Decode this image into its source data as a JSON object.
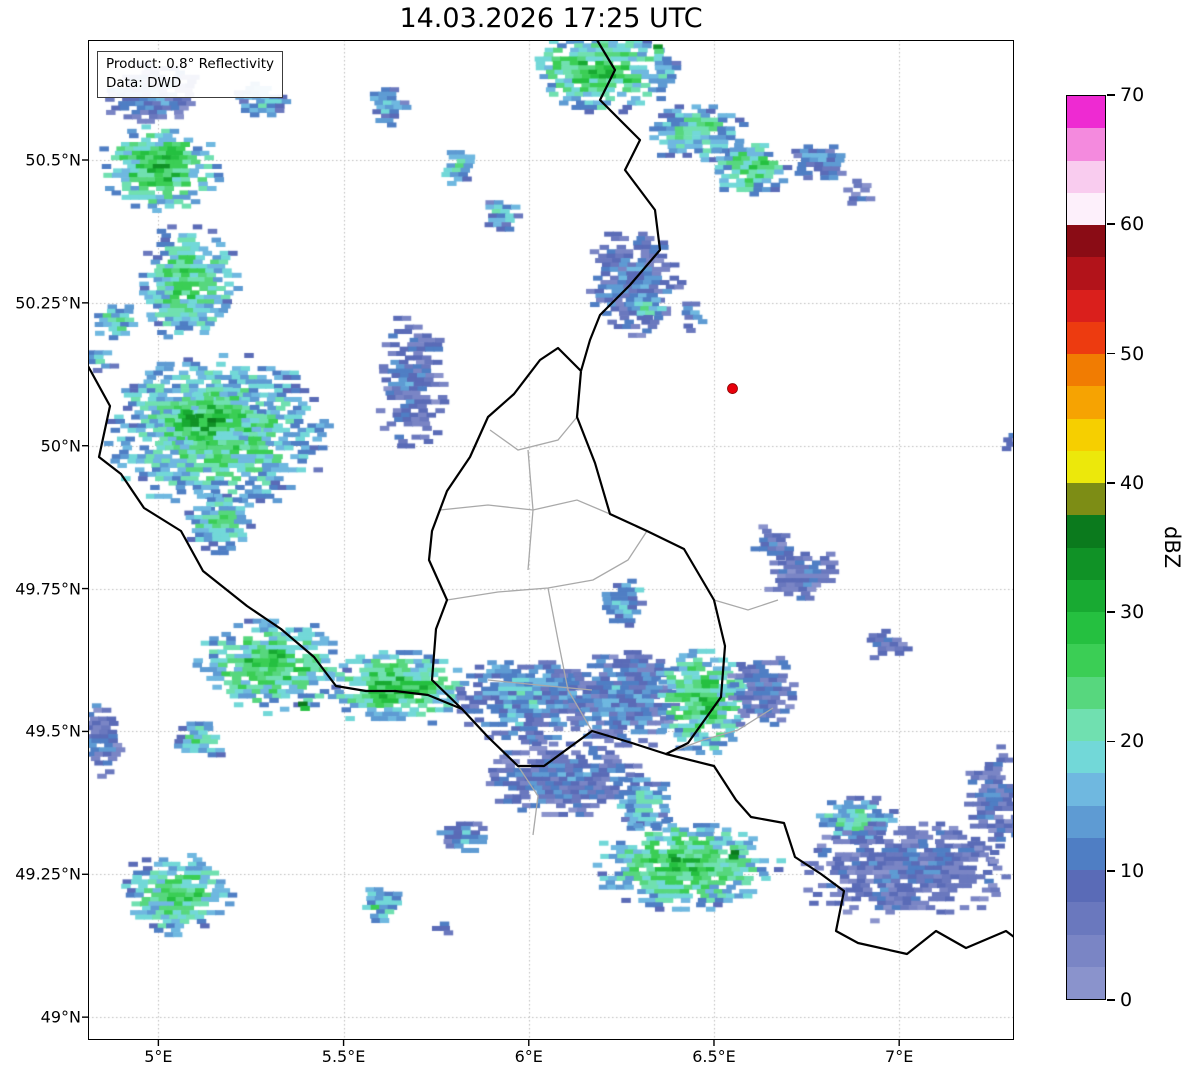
{
  "title": "14.03.2026 17:25 UTC",
  "annotation": {
    "line1": "Product: 0.8° Reflectivity",
    "line2": "Data: DWD"
  },
  "axes": {
    "lon_min": 4.81,
    "lon_max": 7.31,
    "lat_min": 48.96,
    "lat_max": 50.71,
    "grid_color": "#bdbdbd",
    "x_ticks": [
      {
        "value": 5.0,
        "label": "5°E"
      },
      {
        "value": 5.5,
        "label": "5.5°E"
      },
      {
        "value": 6.0,
        "label": "6°E"
      },
      {
        "value": 6.5,
        "label": "6.5°E"
      },
      {
        "value": 7.0,
        "label": "7°E"
      }
    ],
    "y_ticks": [
      {
        "value": 49.0,
        "label": "49°N"
      },
      {
        "value": 49.25,
        "label": "49.25°N"
      },
      {
        "value": 49.5,
        "label": "49.5°N"
      },
      {
        "value": 49.75,
        "label": "49.75°N"
      },
      {
        "value": 50.0,
        "label": "50°N"
      },
      {
        "value": 50.25,
        "label": "50.25°N"
      },
      {
        "value": 50.5,
        "label": "50.5°N"
      }
    ]
  },
  "colorbar": {
    "label": "dBZ",
    "min": 0,
    "max": 70,
    "ticks": [
      0,
      10,
      20,
      30,
      40,
      50,
      60,
      70
    ],
    "palette": [
      "#8a93cc",
      "#7a85c5",
      "#6a78be",
      "#5a6bb7",
      "#4f7ec4",
      "#5e9bd3",
      "#6fb8e0",
      "#72d8d8",
      "#70e0b0",
      "#57d77e",
      "#3bce55",
      "#25c040",
      "#18aa32",
      "#109226",
      "#0b7a1d",
      "#7d8d15",
      "#ece80b",
      "#f6cf00",
      "#f6a302",
      "#f17c02",
      "#ed3b10",
      "#da1f1c",
      "#b2131a",
      "#8a0c15",
      "#fdf0fb",
      "#f9ccef",
      "#f48ade",
      "#ee2ad2"
    ]
  },
  "marker": {
    "lon": 6.55,
    "lat": 50.1,
    "color": "#e8000b",
    "radius": 5
  },
  "map": {
    "borders": {
      "country_color": "#000000",
      "region_color": "#a9a9a9",
      "country": [
        [
          [
            509,
            0
          ],
          [
            527,
            30
          ],
          [
            512,
            60
          ],
          [
            552,
            100
          ],
          [
            537,
            130
          ],
          [
            567,
            170
          ],
          [
            572,
            210
          ],
          [
            542,
            245
          ],
          [
            512,
            275
          ],
          [
            502,
            300
          ],
          [
            493,
            331
          ]
        ],
        [
          [
            493,
            331
          ],
          [
            489,
            377
          ],
          [
            507,
            423
          ],
          [
            522,
            474
          ],
          [
            559,
            491
          ],
          [
            596,
            509
          ],
          [
            626,
            560
          ],
          [
            637,
            606
          ],
          [
            633,
            657
          ],
          [
            600,
            703
          ],
          [
            578,
            714
          ],
          [
            544,
            703
          ],
          [
            504,
            691
          ],
          [
            456,
            726
          ],
          [
            430,
            726
          ],
          [
            400,
            697
          ],
          [
            374,
            669
          ],
          [
            344,
            640
          ],
          [
            348,
            589
          ],
          [
            359,
            560
          ],
          [
            341,
            520
          ],
          [
            344,
            491
          ],
          [
            359,
            451
          ],
          [
            382,
            417
          ],
          [
            400,
            377
          ],
          [
            426,
            354
          ],
          [
            452,
            320
          ],
          [
            470,
            308
          ],
          [
            493,
            331
          ]
        ],
        [
          [
            0,
            326
          ],
          [
            22,
            366
          ],
          [
            11,
            417
          ],
          [
            33,
            434
          ],
          [
            56,
            468
          ],
          [
            93,
            491
          ],
          [
            115,
            531
          ],
          [
            159,
            566
          ],
          [
            193,
            589
          ],
          [
            226,
            617
          ],
          [
            248,
            646
          ],
          [
            278,
            651
          ],
          [
            307,
            651
          ],
          [
            340,
            655
          ],
          [
            374,
            669
          ]
        ],
        [
          [
            578,
            714
          ],
          [
            626,
            726
          ],
          [
            648,
            760
          ],
          [
            663,
            777
          ],
          [
            696,
            783
          ],
          [
            707,
            817
          ],
          [
            733,
            834
          ],
          [
            756,
            851
          ],
          [
            748,
            891
          ],
          [
            770,
            903
          ],
          [
            819,
            914
          ],
          [
            848,
            891
          ],
          [
            878,
            908
          ],
          [
            918,
            891
          ],
          [
            926,
            897
          ]
        ]
      ],
      "region": [
        [
          [
            402,
            390
          ],
          [
            430,
            410
          ],
          [
            470,
            400
          ],
          [
            489,
            377
          ]
        ],
        [
          [
            352,
            470
          ],
          [
            400,
            465
          ],
          [
            445,
            470
          ],
          [
            489,
            460
          ],
          [
            522,
            474
          ]
        ],
        [
          [
            440,
            410
          ],
          [
            445,
            470
          ],
          [
            440,
            530
          ]
        ],
        [
          [
            359,
            560
          ],
          [
            410,
            552
          ],
          [
            460,
            548
          ],
          [
            505,
            540
          ],
          [
            540,
            520
          ],
          [
            559,
            491
          ]
        ],
        [
          [
            460,
            548
          ],
          [
            470,
            600
          ],
          [
            480,
            650
          ],
          [
            504,
            691
          ]
        ],
        [
          [
            400,
            640
          ],
          [
            450,
            645
          ],
          [
            504,
            650
          ]
        ],
        [
          [
            626,
            560
          ],
          [
            660,
            570
          ],
          [
            690,
            560
          ]
        ],
        [
          [
            578,
            714
          ],
          [
            615,
            700
          ],
          [
            650,
            690
          ],
          [
            685,
            668
          ]
        ],
        [
          [
            430,
            726
          ],
          [
            450,
            756
          ],
          [
            445,
            795
          ]
        ]
      ]
    }
  },
  "chart_data": {
    "type": "heatmap",
    "title": "14.03.2026 17:25 UTC",
    "units": "dBZ",
    "value_range": [
      0,
      70
    ],
    "value_step": 2.5,
    "x_range": [
      4.81,
      7.31
    ],
    "y_range": [
      48.96,
      50.71
    ],
    "echoes": [
      {
        "lon": 4.98,
        "lat": 50.62,
        "w": 0.27,
        "h": 0.12,
        "dbz": 12
      },
      {
        "lon": 4.99,
        "lat": 50.49,
        "w": 0.33,
        "h": 0.16,
        "dbz": 31
      },
      {
        "lon": 5.26,
        "lat": 50.61,
        "w": 0.14,
        "h": 0.07,
        "dbz": 20
      },
      {
        "lon": 5.61,
        "lat": 50.6,
        "w": 0.1,
        "h": 0.07,
        "dbz": 17
      },
      {
        "lon": 5.07,
        "lat": 50.29,
        "w": 0.28,
        "h": 0.21,
        "dbz": 27
      },
      {
        "lon": 4.87,
        "lat": 50.22,
        "w": 0.12,
        "h": 0.07,
        "dbz": 24
      },
      {
        "lon": 4.83,
        "lat": 50.16,
        "w": 0.08,
        "h": 0.06,
        "dbz": 22
      },
      {
        "lon": 5.15,
        "lat": 50.03,
        "w": 0.62,
        "h": 0.28,
        "dbz": 27
      },
      {
        "lon": 5.13,
        "lat": 50.05,
        "w": 0.3,
        "h": 0.12,
        "dbz": 34
      },
      {
        "lon": 5.07,
        "lat": 50.06,
        "w": 0.04,
        "h": 0.02,
        "dbz": 41
      },
      {
        "lon": 5.15,
        "lat": 49.87,
        "w": 0.19,
        "h": 0.11,
        "dbz": 25
      },
      {
        "lon": 6.19,
        "lat": 50.66,
        "w": 0.42,
        "h": 0.15,
        "dbz": 29
      },
      {
        "lon": 6.33,
        "lat": 50.7,
        "w": 0.04,
        "h": 0.02,
        "dbz": 41
      },
      {
        "lon": 6.44,
        "lat": 50.55,
        "w": 0.27,
        "h": 0.11,
        "dbz": 24
      },
      {
        "lon": 6.59,
        "lat": 50.49,
        "w": 0.22,
        "h": 0.11,
        "dbz": 27
      },
      {
        "lon": 6.77,
        "lat": 50.5,
        "w": 0.16,
        "h": 0.07,
        "dbz": 14
      },
      {
        "lon": 6.87,
        "lat": 50.45,
        "w": 0.08,
        "h": 0.05,
        "dbz": 8
      },
      {
        "lon": 5.8,
        "lat": 50.49,
        "w": 0.1,
        "h": 0.07,
        "dbz": 21
      },
      {
        "lon": 5.92,
        "lat": 50.41,
        "w": 0.11,
        "h": 0.07,
        "dbz": 19
      },
      {
        "lon": 6.27,
        "lat": 50.29,
        "w": 0.26,
        "h": 0.2,
        "dbz": 12
      },
      {
        "lon": 6.3,
        "lat": 50.25,
        "w": 0.11,
        "h": 0.05,
        "dbz": 22
      },
      {
        "lon": 6.44,
        "lat": 50.23,
        "w": 0.08,
        "h": 0.06,
        "dbz": 16
      },
      {
        "lon": 5.67,
        "lat": 50.11,
        "w": 0.19,
        "h": 0.25,
        "dbz": 10
      },
      {
        "lon": 6.73,
        "lat": 49.78,
        "w": 0.22,
        "h": 0.1,
        "dbz": 9
      },
      {
        "lon": 6.65,
        "lat": 49.83,
        "w": 0.13,
        "h": 0.08,
        "dbz": 9
      },
      {
        "lon": 6.95,
        "lat": 49.66,
        "w": 0.13,
        "h": 0.07,
        "dbz": 9
      },
      {
        "lon": 6.25,
        "lat": 49.73,
        "w": 0.13,
        "h": 0.09,
        "dbz": 19
      },
      {
        "lon": 5.29,
        "lat": 49.62,
        "w": 0.42,
        "h": 0.17,
        "dbz": 29
      },
      {
        "lon": 5.38,
        "lat": 49.55,
        "w": 0.04,
        "h": 0.02,
        "dbz": 42
      },
      {
        "lon": 5.63,
        "lat": 49.58,
        "w": 0.38,
        "h": 0.14,
        "dbz": 31
      },
      {
        "lon": 5.98,
        "lat": 49.56,
        "w": 0.38,
        "h": 0.16,
        "dbz": 17
      },
      {
        "lon": 6.25,
        "lat": 49.56,
        "w": 0.32,
        "h": 0.18,
        "dbz": 14
      },
      {
        "lon": 6.46,
        "lat": 49.56,
        "w": 0.26,
        "h": 0.2,
        "dbz": 29
      },
      {
        "lon": 6.62,
        "lat": 49.57,
        "w": 0.19,
        "h": 0.14,
        "dbz": 10
      },
      {
        "lon": 6.08,
        "lat": 49.42,
        "w": 0.43,
        "h": 0.14,
        "dbz": 11
      },
      {
        "lon": 6.3,
        "lat": 49.38,
        "w": 0.16,
        "h": 0.11,
        "dbz": 21
      },
      {
        "lon": 4.84,
        "lat": 49.5,
        "w": 0.11,
        "h": 0.16,
        "dbz": 11
      },
      {
        "lon": 5.1,
        "lat": 49.49,
        "w": 0.14,
        "h": 0.07,
        "dbz": 23
      },
      {
        "lon": 5.81,
        "lat": 49.32,
        "w": 0.14,
        "h": 0.06,
        "dbz": 17
      },
      {
        "lon": 5.04,
        "lat": 49.22,
        "w": 0.31,
        "h": 0.15,
        "dbz": 27
      },
      {
        "lon": 5.58,
        "lat": 49.2,
        "w": 0.14,
        "h": 0.07,
        "dbz": 21
      },
      {
        "lon": 5.75,
        "lat": 49.16,
        "w": 0.07,
        "h": 0.03,
        "dbz": 14
      },
      {
        "lon": 6.41,
        "lat": 49.27,
        "w": 0.51,
        "h": 0.17,
        "dbz": 29
      },
      {
        "lon": 6.37,
        "lat": 49.28,
        "w": 0.04,
        "h": 0.015,
        "dbz": 42
      },
      {
        "lon": 6.55,
        "lat": 49.29,
        "w": 0.05,
        "h": 0.02,
        "dbz": 42
      },
      {
        "lon": 6.87,
        "lat": 49.35,
        "w": 0.22,
        "h": 0.09,
        "dbz": 23
      },
      {
        "lon": 7.0,
        "lat": 49.26,
        "w": 0.6,
        "h": 0.18,
        "dbz": 9
      },
      {
        "lon": 7.24,
        "lat": 49.38,
        "w": 0.16,
        "h": 0.21,
        "dbz": 9
      },
      {
        "lon": 7.29,
        "lat": 50.01,
        "w": 0.05,
        "h": 0.04,
        "dbz": 9
      }
    ]
  }
}
